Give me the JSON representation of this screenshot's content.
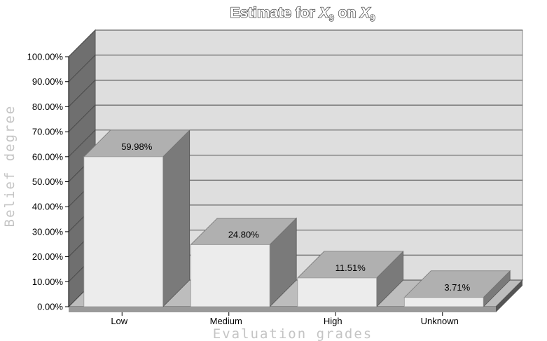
{
  "chart_data": {
    "type": "bar",
    "title": {
      "prefix": "Estimate for ",
      "var1": "X",
      "sub1": "9",
      "middle": " on ",
      "var2": "X",
      "sub2": "9"
    },
    "xlabel": "Evaluation grades",
    "ylabel": "Belief degree",
    "categories": [
      "Low",
      "Medium",
      "High",
      "Unknown"
    ],
    "values": [
      59.98,
      24.8,
      11.51,
      3.71
    ],
    "data_labels": [
      "59.98%",
      "24.80%",
      "11.51%",
      "3.71%"
    ],
    "ylim": [
      0,
      100
    ],
    "yticks": [
      "0.00%",
      "10.00%",
      "20.00%",
      "30.00%",
      "40.00%",
      "50.00%",
      "60.00%",
      "70.00%",
      "80.00%",
      "90.00%",
      "100.00%"
    ],
    "grid": true,
    "three_d": true,
    "colors": {
      "bar_front": "#ececec",
      "bar_top": "#b0b0b0",
      "bar_side": "#7a7a7a",
      "back_wall": "#dedede",
      "side_wall": "#6f6f6f",
      "floor": "#bdbdbd",
      "grid": "#4a4a4a"
    }
  }
}
